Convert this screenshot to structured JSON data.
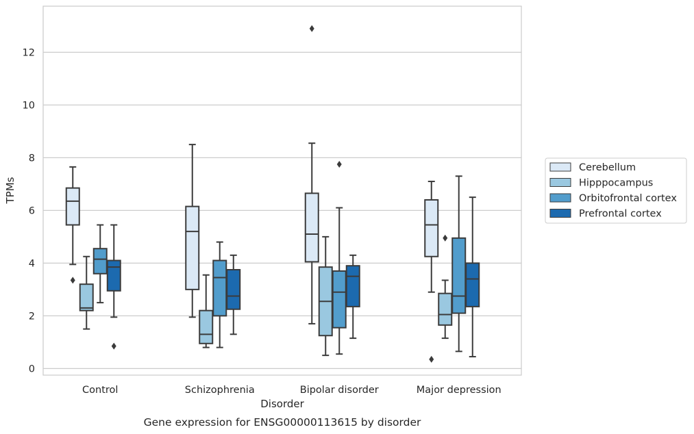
{
  "chart_data": {
    "type": "box",
    "title": "Gene expression for ENSG00000113615 by disorder",
    "xlabel": "Disorder",
    "ylabel": "TPMs",
    "ylim": [
      -0.25,
      13.75
    ],
    "yticks": [
      0,
      2,
      4,
      6,
      8,
      10,
      12
    ],
    "grid": true,
    "legend_position": "right",
    "categories": [
      "Control",
      "Schizophrenia",
      "Bipolar disorder",
      "Major depression"
    ],
    "series": [
      {
        "name": "Cerebellum",
        "color": "#dbe9f6",
        "boxes": [
          {
            "whisker_low": 3.95,
            "q1": 5.45,
            "median": 6.35,
            "q3": 6.85,
            "whisker_high": 7.65,
            "outliers": [
              3.35
            ]
          },
          {
            "whisker_low": 1.95,
            "q1": 3.0,
            "median": 5.2,
            "q3": 6.15,
            "whisker_high": 8.5,
            "outliers": []
          },
          {
            "whisker_low": 1.7,
            "q1": 4.05,
            "median": 5.1,
            "q3": 6.65,
            "whisker_high": 8.55,
            "outliers": [
              12.9
            ]
          },
          {
            "whisker_low": 2.9,
            "q1": 4.25,
            "median": 5.45,
            "q3": 6.4,
            "whisker_high": 7.1,
            "outliers": [
              0.35
            ]
          }
        ]
      },
      {
        "name": "Hipppocampus",
        "color": "#9ac8e0",
        "boxes": [
          {
            "whisker_low": 1.5,
            "q1": 2.2,
            "median": 2.3,
            "q3": 3.2,
            "whisker_high": 4.25,
            "outliers": []
          },
          {
            "whisker_low": 0.8,
            "q1": 0.95,
            "median": 1.3,
            "q3": 2.2,
            "whisker_high": 3.55,
            "outliers": []
          },
          {
            "whisker_low": 0.5,
            "q1": 1.25,
            "median": 2.55,
            "q3": 3.85,
            "whisker_high": 5.0,
            "outliers": []
          },
          {
            "whisker_low": 1.15,
            "q1": 1.65,
            "median": 2.05,
            "q3": 2.85,
            "whisker_high": 3.35,
            "outliers": [
              4.95
            ]
          }
        ]
      },
      {
        "name": "Orbitofrontal cortex",
        "color": "#529dcc",
        "boxes": [
          {
            "whisker_low": 2.5,
            "q1": 3.6,
            "median": 4.15,
            "q3": 4.55,
            "whisker_high": 5.45,
            "outliers": []
          },
          {
            "whisker_low": 0.8,
            "q1": 2.0,
            "median": 3.45,
            "q3": 4.1,
            "whisker_high": 4.8,
            "outliers": []
          },
          {
            "whisker_low": 0.55,
            "q1": 1.55,
            "median": 2.9,
            "q3": 3.7,
            "whisker_high": 6.1,
            "outliers": [
              7.75
            ]
          },
          {
            "whisker_low": 0.65,
            "q1": 2.1,
            "median": 2.75,
            "q3": 4.95,
            "whisker_high": 7.3,
            "outliers": []
          }
        ]
      },
      {
        "name": "Prefrontal cortex",
        "color": "#1c6aaf",
        "boxes": [
          {
            "whisker_low": 1.95,
            "q1": 2.95,
            "median": 3.85,
            "q3": 4.1,
            "whisker_high": 5.45,
            "outliers": [
              0.85
            ]
          },
          {
            "whisker_low": 1.3,
            "q1": 2.25,
            "median": 2.75,
            "q3": 3.75,
            "whisker_high": 4.3,
            "outliers": []
          },
          {
            "whisker_low": 1.15,
            "q1": 2.35,
            "median": 3.5,
            "q3": 3.9,
            "whisker_high": 4.3,
            "outliers": []
          },
          {
            "whisker_low": 0.45,
            "q1": 2.35,
            "median": 3.4,
            "q3": 4.0,
            "whisker_high": 6.5,
            "outliers": []
          }
        ]
      }
    ]
  }
}
